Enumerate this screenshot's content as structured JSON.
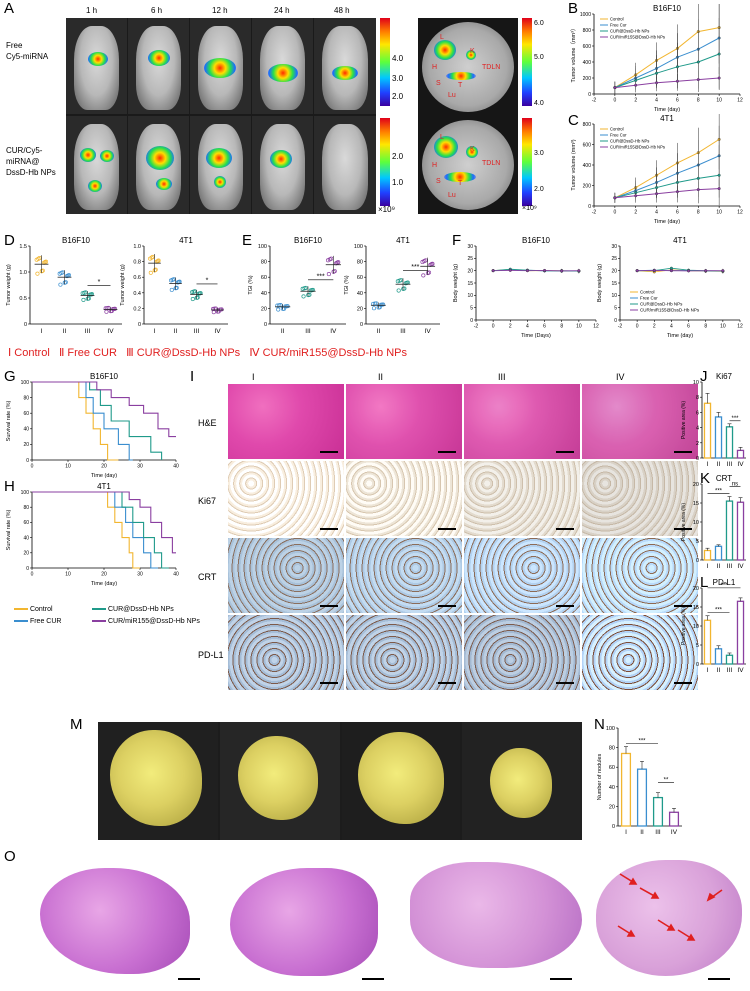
{
  "panels": {
    "A": {
      "letter": "A",
      "timepoints": [
        "1 h",
        "6 h",
        "12 h",
        "24 h",
        "48 h"
      ],
      "row_labels": [
        "Free\nCy5-miRNA",
        "CUR/Cy5-\nmiRNA@\nDssD-Hb NPs"
      ],
      "scale_top": [
        "4.0",
        "3.0",
        "2.0",
        "1.0"
      ],
      "scale_top_unit": "×10⁹",
      "scale_organ": [
        "6.0",
        "5.0",
        "4.0",
        "3.0",
        "2.0"
      ],
      "scale_organ_unit": "×10⁹",
      "organ_labels": [
        "L",
        "K",
        "TDLN",
        "H",
        "S",
        "T",
        "Lu"
      ]
    },
    "B": {
      "letter": "B"
    },
    "C": {
      "letter": "C"
    },
    "D": {
      "letter": "D"
    },
    "E": {
      "letter": "E"
    },
    "F": {
      "letter": "F"
    },
    "G": {
      "letter": "G"
    },
    "H": {
      "letter": "H"
    },
    "I": {
      "letter": "I",
      "columns": [
        "I",
        "II",
        "III",
        "IV"
      ],
      "rows": [
        "H&E",
        "Ki67",
        "CRT",
        "PD-L1"
      ]
    },
    "J": {
      "letter": "J"
    },
    "K": {
      "letter": "K"
    },
    "L": {
      "letter": "L"
    },
    "M": {
      "letter": "M"
    },
    "N": {
      "letter": "N"
    },
    "O": {
      "letter": "O"
    }
  },
  "group_legend_line": [
    "Ⅰ Control",
    "Ⅱ Free CUR",
    "Ⅲ CUR@DssD-Hb NPs",
    "Ⅳ CUR/miR155@DssD-Hb NPs"
  ],
  "survival_legend": [
    "Control",
    "Free CUR",
    "CUR@DssD-Hb NPs",
    "CUR/miR155@DssD-Hb NPs"
  ],
  "colors": {
    "control": "#f2b630",
    "free_cur": "#3a8ecf",
    "cur_np": "#1f9a8a",
    "cur_mir": "#8a3fa0",
    "red_text": "#e02020"
  },
  "chart_data": [
    {
      "id": "B",
      "type": "line",
      "title": "B16F10",
      "xlabel": "Time (day)",
      "ylabel": "Tumor volume（mm³）",
      "x": [
        0,
        2,
        4,
        6,
        8,
        10
      ],
      "xlim": [
        -2,
        12
      ],
      "ylim": [
        0,
        1000
      ],
      "xticks": [
        "-2",
        "0",
        "2",
        "4",
        "6",
        "8",
        "10",
        "12"
      ],
      "yticks": [
        "0",
        "200",
        "400",
        "600",
        "800",
        "1000"
      ],
      "legend_placement": "top-left",
      "series": [
        {
          "name": "Control",
          "values": [
            80,
            240,
            420,
            570,
            780,
            830
          ]
        },
        {
          "name": "Free Cur",
          "values": [
            80,
            200,
            320,
            460,
            560,
            700
          ]
        },
        {
          "name": "CUR@DssD-Hb NPs",
          "values": [
            80,
            170,
            260,
            340,
            400,
            500
          ]
        },
        {
          "name": "CUR/miR155@DssD-Hb NPs",
          "values": [
            80,
            110,
            140,
            160,
            180,
            200
          ]
        }
      ]
    },
    {
      "id": "C",
      "type": "line",
      "title": "4T1",
      "xlabel": "Time (day)",
      "ylabel": "Tumor volume (mm³)",
      "x": [
        0,
        2,
        4,
        6,
        8,
        10
      ],
      "xlim": [
        -2,
        12
      ],
      "ylim": [
        0,
        800
      ],
      "xticks": [
        "-2",
        "0",
        "2",
        "4",
        "6",
        "8",
        "10",
        "12"
      ],
      "yticks": [
        "0",
        "200",
        "400",
        "600",
        "800"
      ],
      "legend_placement": "top-left",
      "series": [
        {
          "name": "Control",
          "values": [
            80,
            180,
            300,
            420,
            520,
            650
          ]
        },
        {
          "name": "Free Cur",
          "values": [
            80,
            150,
            230,
            320,
            400,
            490
          ]
        },
        {
          "name": "CUR@DssD-Hb NPs",
          "values": [
            80,
            130,
            180,
            230,
            270,
            300
          ]
        },
        {
          "name": "CUR/miR155@DssD-Hb NPs",
          "values": [
            80,
            100,
            120,
            140,
            160,
            170
          ]
        }
      ]
    },
    {
      "id": "D1",
      "type": "scatter",
      "title": "B16F10",
      "ylabel": "Tumor weight (g)",
      "categories": [
        "I",
        "II",
        "III",
        "IV"
      ],
      "ylim": [
        0,
        1.5
      ],
      "yticks": [
        "0",
        "0.5",
        "1.0",
        "1.5"
      ],
      "values": [
        1.15,
        0.9,
        0.55,
        0.28
      ],
      "sig": "*"
    },
    {
      "id": "D2",
      "type": "scatter",
      "title": "4T1",
      "ylabel": "Tumor weight (g)",
      "categories": [
        "I",
        "II",
        "III",
        "IV"
      ],
      "ylim": [
        0,
        1.0
      ],
      "yticks": [
        "0",
        "0.2",
        "0.4",
        "0.6",
        "0.8",
        "1.0"
      ],
      "values": [
        0.78,
        0.52,
        0.38,
        0.18
      ],
      "sig": "*"
    },
    {
      "id": "E1",
      "type": "scatter",
      "title": "B16F10",
      "ylabel": "TGI (%)",
      "categories": [
        "II",
        "III",
        "IV"
      ],
      "ylim": [
        0,
        100
      ],
      "yticks": [
        "0",
        "20",
        "40",
        "60",
        "80",
        "100"
      ],
      "values": [
        22,
        42,
        76
      ],
      "sig": "***"
    },
    {
      "id": "E2",
      "type": "scatter",
      "title": "4T1",
      "ylabel": "TGI (%)",
      "categories": [
        "II",
        "III",
        "IV"
      ],
      "ylim": [
        0,
        100
      ],
      "yticks": [
        "0",
        "20",
        "40",
        "60",
        "80",
        "100"
      ],
      "values": [
        24,
        51,
        74
      ],
      "sig": "***"
    },
    {
      "id": "F1",
      "type": "line",
      "title": "B16F10",
      "xlabel": "Time (Days)",
      "ylabel": "Body weight (g)",
      "x": [
        0,
        2,
        4,
        6,
        8,
        10
      ],
      "xlim": [
        -2,
        12
      ],
      "ylim": [
        0,
        30
      ],
      "xticks": [
        "-2",
        "0",
        "2",
        "4",
        "6",
        "8",
        "10",
        "12"
      ],
      "yticks": [
        "0",
        "5",
        "10",
        "15",
        "20",
        "25",
        "30"
      ],
      "series": [
        {
          "name": "Control",
          "values": [
            20,
            20.5,
            20,
            20,
            20,
            19.8
          ]
        },
        {
          "name": "Free Cur",
          "values": [
            20,
            20.3,
            20.2,
            19.9,
            20,
            19.9
          ]
        },
        {
          "name": "CUR@DssD-Hb NPs",
          "values": [
            20,
            20.6,
            20.2,
            20,
            19.8,
            19.8
          ]
        },
        {
          "name": "CUR/miR155@DssD-Hb NPs",
          "values": [
            20,
            20.1,
            20,
            20.1,
            19.9,
            20
          ]
        }
      ]
    },
    {
      "id": "F2",
      "type": "line",
      "title": "4T1",
      "xlabel": "Time (day)",
      "ylabel": "Body weight (g)",
      "x": [
        0,
        2,
        4,
        6,
        8,
        10
      ],
      "xlim": [
        -2,
        12
      ],
      "ylim": [
        0,
        30
      ],
      "xticks": [
        "-2",
        "0",
        "2",
        "4",
        "6",
        "8",
        "10",
        "12"
      ],
      "yticks": [
        "0",
        "5",
        "10",
        "15",
        "20",
        "25",
        "30"
      ],
      "legend_placement": "bottom-left",
      "series": [
        {
          "name": "Control",
          "values": [
            20,
            19.5,
            20.3,
            20,
            19.8,
            19.7
          ]
        },
        {
          "name": "Free Cur",
          "values": [
            20,
            20.2,
            20,
            20.1,
            19.9,
            19.8
          ]
        },
        {
          "name": "CUR@DssD-Hb NPs",
          "values": [
            20,
            20,
            21,
            20.2,
            20,
            19.9
          ]
        },
        {
          "name": "CUR/miR155@DssD-Hb NPs",
          "values": [
            20,
            20.1,
            20,
            19.9,
            20,
            20
          ]
        }
      ]
    },
    {
      "id": "G",
      "type": "line",
      "title": "B16F10",
      "xlabel": "Time (day)",
      "ylabel": "Survival rate (%)",
      "xlim": [
        0,
        40
      ],
      "ylim": [
        0,
        100
      ],
      "xticks": [
        "0",
        "10",
        "20",
        "30",
        "40"
      ],
      "yticks": [
        "0",
        "20",
        "40",
        "60",
        "80",
        "100"
      ],
      "series": [
        {
          "name": "Control",
          "values": [
            [
              0,
              100
            ],
            [
              13,
              100
            ],
            [
              13,
              80
            ],
            [
              15,
              80
            ],
            [
              15,
              60
            ],
            [
              17,
              60
            ],
            [
              17,
              40
            ],
            [
              19,
              40
            ],
            [
              19,
              20
            ],
            [
              21,
              20
            ],
            [
              21,
              0
            ],
            [
              24,
              0
            ]
          ]
        },
        {
          "name": "Free CUR",
          "values": [
            [
              0,
              100
            ],
            [
              15,
              100
            ],
            [
              15,
              80
            ],
            [
              17,
              80
            ],
            [
              17,
              60
            ],
            [
              20,
              60
            ],
            [
              20,
              40
            ],
            [
              24,
              40
            ],
            [
              24,
              20
            ],
            [
              27,
              20
            ],
            [
              27,
              0
            ],
            [
              28,
              0
            ]
          ]
        },
        {
          "name": "CUR@DssD-Hb NPs",
          "values": [
            [
              0,
              100
            ],
            [
              16,
              100
            ],
            [
              16,
              90
            ],
            [
              19,
              90
            ],
            [
              19,
              70
            ],
            [
              22,
              70
            ],
            [
              22,
              50
            ],
            [
              27,
              50
            ],
            [
              27,
              30
            ],
            [
              33,
              30
            ],
            [
              33,
              10
            ],
            [
              36,
              10
            ],
            [
              36,
              0
            ]
          ]
        },
        {
          "name": "CUR/miR155@DssD-Hb NPs",
          "values": [
            [
              0,
              100
            ],
            [
              18,
              100
            ],
            [
              18,
              90
            ],
            [
              22,
              90
            ],
            [
              22,
              80
            ],
            [
              27,
              80
            ],
            [
              27,
              70
            ],
            [
              31,
              70
            ],
            [
              31,
              60
            ],
            [
              35,
              60
            ],
            [
              35,
              40
            ],
            [
              38,
              40
            ],
            [
              38,
              30
            ],
            [
              40,
              30
            ]
          ]
        }
      ]
    },
    {
      "id": "H",
      "type": "line",
      "title": "4T1",
      "xlabel": "Time (day)",
      "ylabel": "Survival rate (%)",
      "xlim": [
        0,
        40
      ],
      "ylim": [
        0,
        100
      ],
      "xticks": [
        "0",
        "10",
        "20",
        "30",
        "40"
      ],
      "yticks": [
        "0",
        "20",
        "40",
        "60",
        "80",
        "100"
      ],
      "series": [
        {
          "name": "Control",
          "values": [
            [
              0,
              100
            ],
            [
              21,
              100
            ],
            [
              21,
              80
            ],
            [
              23,
              80
            ],
            [
              23,
              60
            ],
            [
              25,
              60
            ],
            [
              25,
              40
            ],
            [
              27,
              40
            ],
            [
              27,
              20
            ],
            [
              28,
              20
            ],
            [
              28,
              0
            ],
            [
              30,
              0
            ]
          ]
        },
        {
          "name": "Free CUR",
          "values": [
            [
              0,
              100
            ],
            [
              23,
              100
            ],
            [
              23,
              80
            ],
            [
              26,
              80
            ],
            [
              26,
              60
            ],
            [
              28,
              60
            ],
            [
              28,
              40
            ],
            [
              31,
              40
            ],
            [
              31,
              20
            ],
            [
              33,
              20
            ],
            [
              33,
              0
            ],
            [
              35,
              0
            ]
          ]
        },
        {
          "name": "CUR@DssD-Hb NPs",
          "values": [
            [
              0,
              100
            ],
            [
              25,
              100
            ],
            [
              25,
              80
            ],
            [
              28,
              80
            ],
            [
              28,
              60
            ],
            [
              31,
              60
            ],
            [
              31,
              40
            ],
            [
              34,
              40
            ],
            [
              34,
              20
            ],
            [
              36,
              20
            ],
            [
              36,
              0
            ],
            [
              38,
              0
            ]
          ]
        },
        {
          "name": "CUR/miR155@DssD-Hb NPs",
          "values": [
            [
              0,
              100
            ],
            [
              27,
              100
            ],
            [
              27,
              90
            ],
            [
              30,
              90
            ],
            [
              30,
              80
            ],
            [
              33,
              80
            ],
            [
              33,
              60
            ],
            [
              36,
              60
            ],
            [
              36,
              40
            ],
            [
              39,
              40
            ],
            [
              39,
              20
            ],
            [
              40,
              20
            ]
          ]
        }
      ]
    },
    {
      "id": "J",
      "type": "bar",
      "title": "Ki67",
      "ylabel": "Positive area (%)",
      "categories": [
        "I",
        "II",
        "III",
        "IV"
      ],
      "values": [
        7.2,
        5.4,
        4.1,
        1.0
      ],
      "errors": [
        1.3,
        0.6,
        0.4,
        0.4
      ],
      "ylim": [
        0,
        10
      ],
      "yticks": [
        "0",
        "2",
        "4",
        "6",
        "8",
        "10"
      ],
      "sig": [
        {
          "from": 2,
          "to": 3,
          "label": "***"
        }
      ]
    },
    {
      "id": "K",
      "type": "bar",
      "title": "CRT",
      "ylabel": "Positive area (%)",
      "categories": [
        "I",
        "II",
        "III",
        "IV"
      ],
      "values": [
        2.5,
        3.6,
        15.5,
        15.2
      ],
      "errors": [
        0.6,
        0.4,
        1.2,
        1.2
      ],
      "ylim": [
        0,
        20
      ],
      "yticks": [
        "0",
        "5",
        "10",
        "15",
        "20"
      ],
      "sig": [
        {
          "from": 0,
          "to": 2,
          "label": "***"
        },
        {
          "from": 2,
          "to": 3,
          "label": "ns"
        }
      ]
    },
    {
      "id": "L",
      "type": "bar",
      "title": "PD-L1",
      "ylabel": "Positive area (%)",
      "categories": [
        "I",
        "II",
        "III",
        "IV"
      ],
      "values": [
        11.5,
        4.0,
        2.3,
        16.5
      ],
      "errors": [
        1.2,
        0.8,
        0.6,
        0.9
      ],
      "ylim": [
        0,
        20
      ],
      "yticks": [
        "0",
        "5",
        "10",
        "15",
        "20"
      ],
      "sig": [
        {
          "from": 0,
          "to": 2,
          "label": "***"
        },
        {
          "from": 0,
          "to": 3,
          "label": "***"
        }
      ]
    },
    {
      "id": "N",
      "type": "bar",
      "ylabel": "Number of nodules",
      "categories": [
        "I",
        "II",
        "III",
        "IV"
      ],
      "values": [
        74,
        58,
        29,
        14
      ],
      "errors": [
        7,
        8,
        5,
        4
      ],
      "ylim": [
        0,
        100
      ],
      "yticks": [
        "0",
        "20",
        "40",
        "60",
        "80",
        "100"
      ],
      "sig": [
        {
          "from": 0,
          "to": 2,
          "label": "***"
        },
        {
          "from": 2,
          "to": 3,
          "label": "**"
        }
      ]
    }
  ]
}
